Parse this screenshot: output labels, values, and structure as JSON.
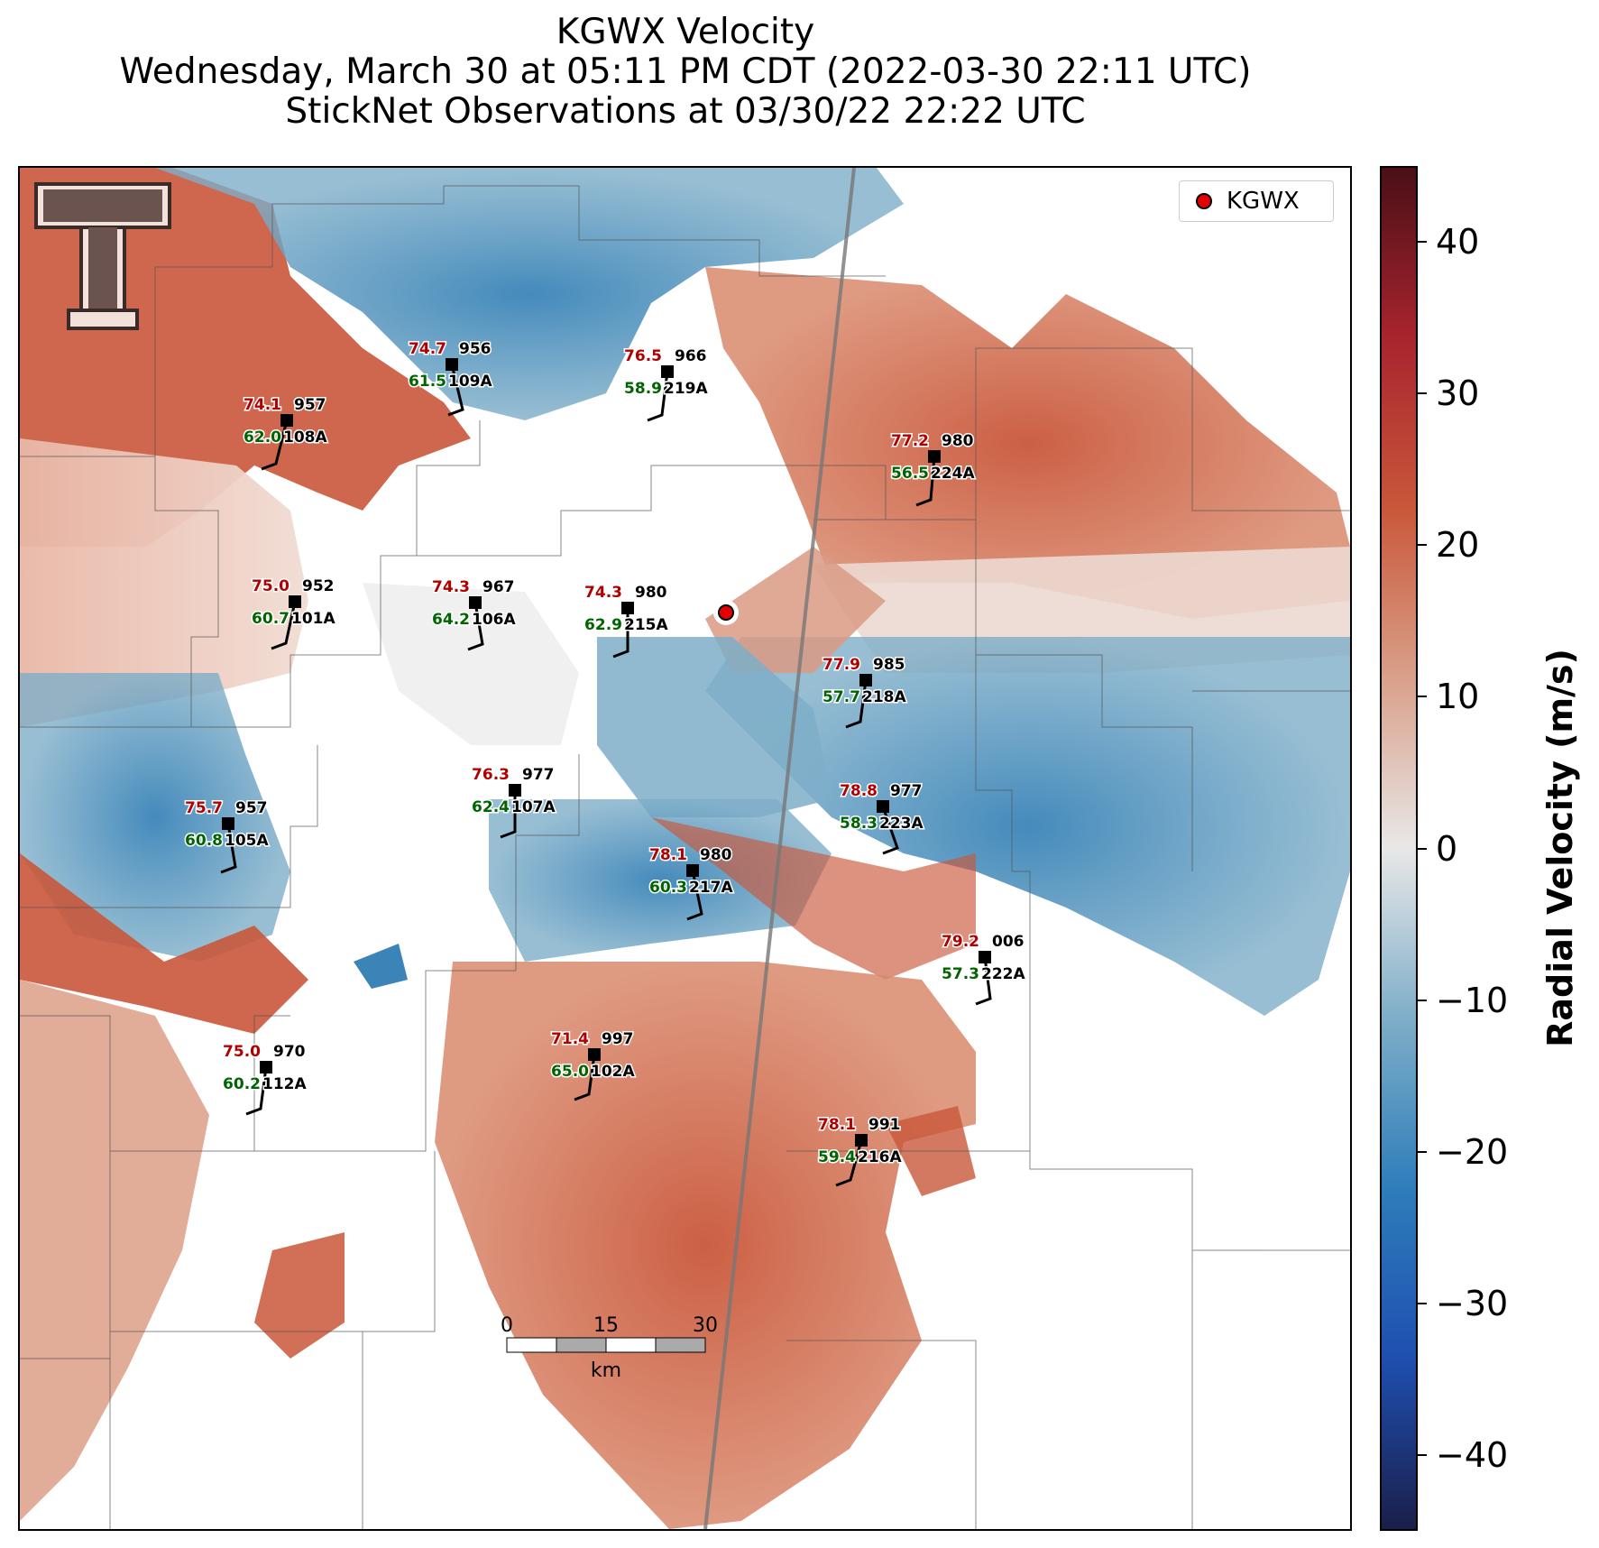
{
  "title": {
    "line1": "KGWX Velocity",
    "line2": "Wednesday, March 30 at 05:11 PM CDT (2022-03-30 22:11 UTC)",
    "line3": "StickNet Observations at 03/30/22 22:22 UTC"
  },
  "legend": {
    "label": "KGWX"
  },
  "radar": {
    "name": "KGWX"
  },
  "colorbar": {
    "label": "Radial Velocity (m/s)",
    "range": [
      -45,
      45
    ],
    "ticks": [
      "40",
      "30",
      "20",
      "10",
      "0",
      "−10",
      "−20",
      "−30",
      "−40"
    ],
    "colors": [
      "#1a1f4a",
      "#1f4fb0",
      "#2e7dba",
      "#7eaec8",
      "#e8e8e8",
      "#d9a08a",
      "#c9573a",
      "#a8242e",
      "#4a0f16"
    ]
  },
  "scalebar": {
    "ticks": [
      "0",
      "15",
      "30"
    ],
    "unit": "km"
  },
  "stations": [
    {
      "id": "108A",
      "temp": "74.1",
      "dew": "62.0",
      "pres": "957"
    },
    {
      "id": "109A",
      "temp": "74.7",
      "dew": "61.5",
      "pres": "956"
    },
    {
      "id": "219A",
      "temp": "76.5",
      "dew": "58.9",
      "pres": "966"
    },
    {
      "id": "224A",
      "temp": "77.2",
      "dew": "56.5",
      "pres": "980"
    },
    {
      "id": "101A",
      "temp": "75.0",
      "dew": "60.7",
      "pres": "952"
    },
    {
      "id": "106A",
      "temp": "74.3",
      "dew": "64.2",
      "pres": "967"
    },
    {
      "id": "215A",
      "temp": "74.3",
      "dew": "62.9",
      "pres": "980"
    },
    {
      "id": "218A",
      "temp": "77.9",
      "dew": "57.7",
      "pres": "985"
    },
    {
      "id": "107A",
      "temp": "76.3",
      "dew": "62.4",
      "pres": "977"
    },
    {
      "id": "105A",
      "temp": "75.7",
      "dew": "60.8",
      "pres": "957"
    },
    {
      "id": "223A",
      "temp": "78.8",
      "dew": "58.3",
      "pres": "977"
    },
    {
      "id": "217A",
      "temp": "78.1",
      "dew": "60.3",
      "pres": "980"
    },
    {
      "id": "222A",
      "temp": "79.2",
      "dew": "57.3",
      "pres": "006"
    },
    {
      "id": "112A",
      "temp": "75.0",
      "dew": "60.2",
      "pres": "970"
    },
    {
      "id": "102A",
      "temp": "71.4",
      "dew": "65.0",
      "pres": "997"
    },
    {
      "id": "216A",
      "temp": "78.1",
      "dew": "59.4",
      "pres": "991"
    }
  ]
}
